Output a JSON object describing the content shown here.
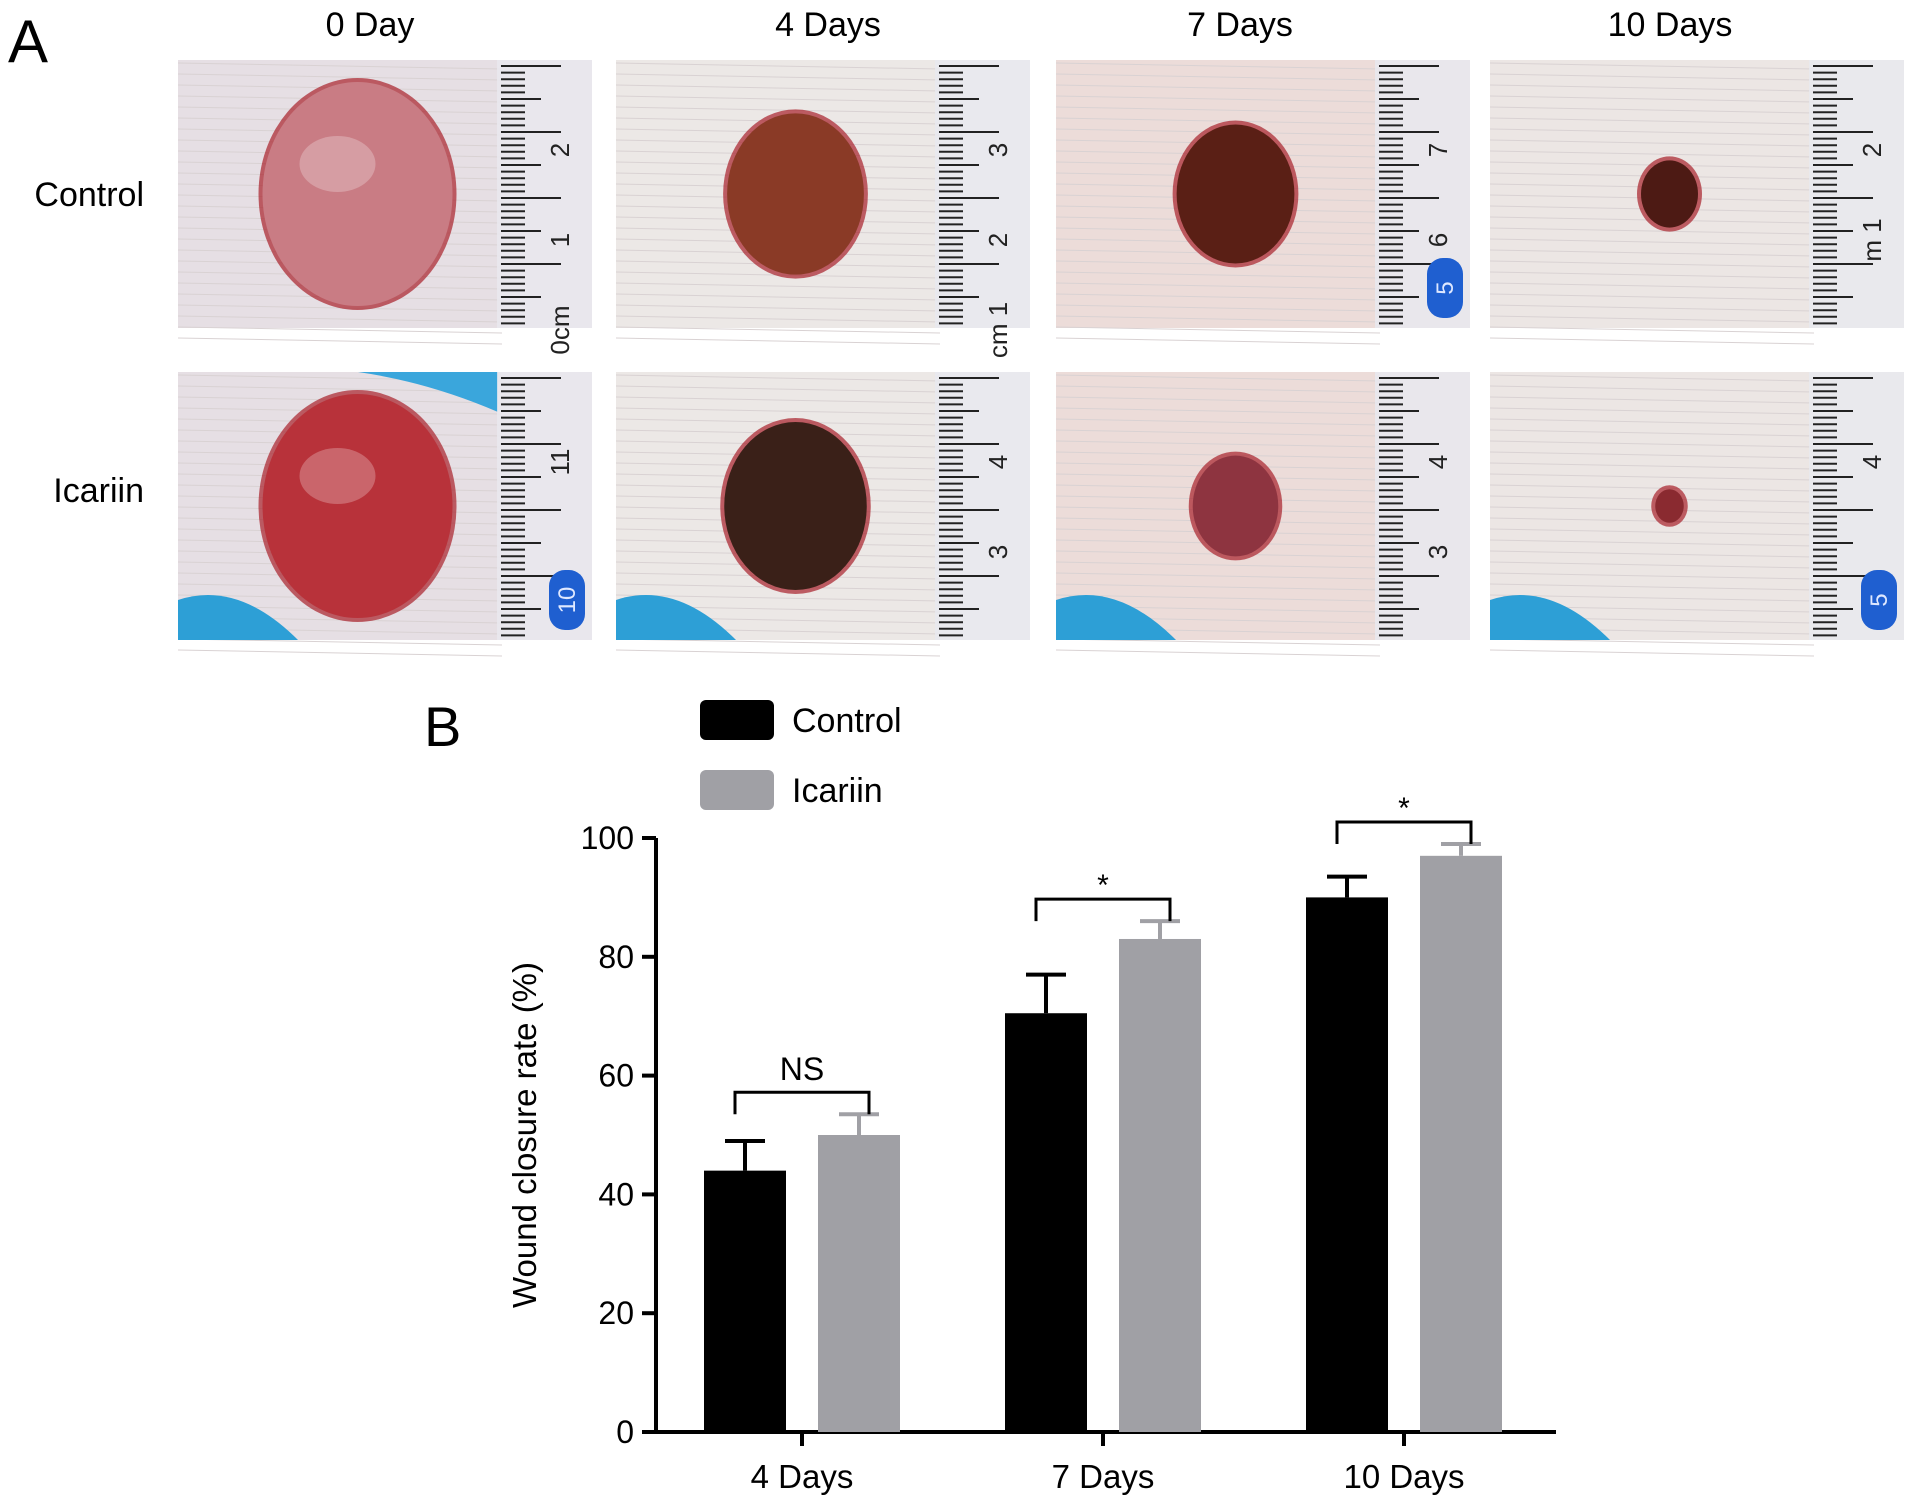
{
  "panel_a": {
    "label": "A",
    "columns": [
      "0 Day",
      "4 Days",
      "7 Days",
      "10 Days"
    ],
    "rows": [
      "Control",
      "Icariin"
    ],
    "photos": [
      [
        {
          "ruler_marks": [
            "2",
            "1",
            "0cm"
          ],
          "tag": "",
          "wound_color": "#c97c84",
          "wound_size": 1.0
        },
        {
          "ruler_marks": [
            "3",
            "2",
            "cm 1"
          ],
          "tag": "",
          "wound_color": "#8a3a26",
          "wound_size": 0.72
        },
        {
          "ruler_marks": [
            "7",
            "6"
          ],
          "tag": "5",
          "wound_color": "#5a1f15",
          "wound_size": 0.62
        },
        {
          "ruler_marks": [
            "2",
            "m 1"
          ],
          "tag": "",
          "wound_color": "#4d1a14",
          "wound_size": 0.3
        }
      ],
      [
        {
          "ruler_marks": [
            "11"
          ],
          "tag": "10",
          "wound_color": "#b8323a",
          "wound_size": 1.0
        },
        {
          "ruler_marks": [
            "4",
            "3"
          ],
          "tag": "",
          "wound_color": "#3a2018",
          "wound_size": 0.75
        },
        {
          "ruler_marks": [
            "4",
            "3"
          ],
          "tag": "",
          "wound_color": "#8e3440",
          "wound_size": 0.45
        },
        {
          "ruler_marks": [
            "4"
          ],
          "tag": "5",
          "wound_color": "#8a2a30",
          "wound_size": 0.15
        }
      ]
    ]
  },
  "panel_b": {
    "label": "B"
  },
  "chart_data": {
    "type": "bar",
    "categories": [
      "4 Days",
      "7 Days",
      "10 Days"
    ],
    "series": [
      {
        "name": "Control",
        "values": [
          44,
          70.5,
          90
        ],
        "errors": [
          5,
          6.5,
          3.5
        ],
        "color": "#000000"
      },
      {
        "name": "Icariin",
        "values": [
          50,
          83,
          97
        ],
        "errors": [
          3.5,
          3,
          2
        ],
        "color": "#a0a0a5"
      }
    ],
    "ylabel": "Wound closure rate (%)",
    "ylim": [
      0,
      100
    ],
    "yticks": [
      "0",
      "20",
      "40",
      "60",
      "80",
      "100"
    ],
    "significance": [
      "NS",
      "*",
      "*"
    ],
    "legend_position": "top-left"
  }
}
